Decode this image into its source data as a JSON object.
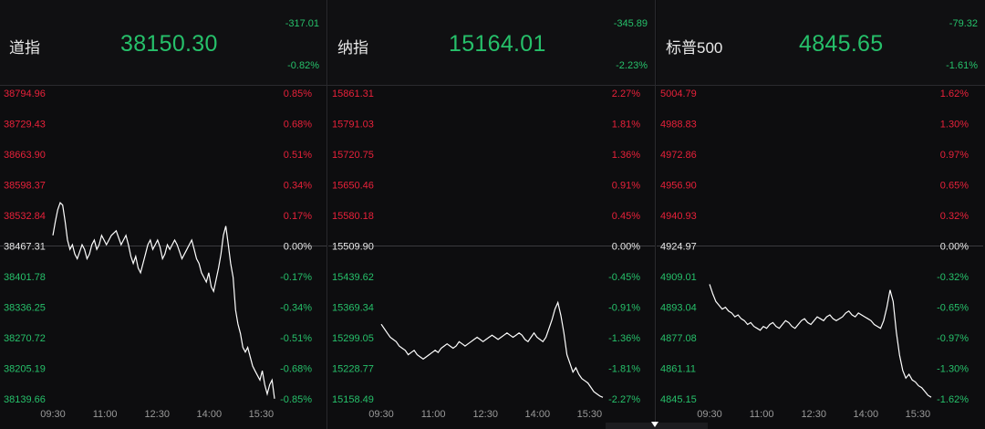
{
  "colors": {
    "background": "#0d0d0f",
    "up": "#e8213a",
    "down": "#26c06a",
    "neutral": "#e8e8e8",
    "line": "#ffffff",
    "grid": "#2a2a2e"
  },
  "chart_data": [
    {
      "type": "line",
      "name": "道指",
      "price": "38150.30",
      "change": "-317.01",
      "change_pct": "-0.82%",
      "ylim": [
        38139.66,
        38794.96
      ],
      "y_ticks": [
        "38794.96",
        "38729.43",
        "38663.90",
        "38598.37",
        "38532.84",
        "38467.31",
        "38401.78",
        "38336.25",
        "38270.72",
        "38205.19",
        "38139.66"
      ],
      "pct_ticks": [
        "0.85%",
        "0.68%",
        "0.51%",
        "0.34%",
        "0.17%",
        "0.00%",
        "-0.17%",
        "-0.34%",
        "-0.51%",
        "-0.68%",
        "-0.85%"
      ],
      "x_ticks": [
        "09:30",
        "11:00",
        "12:30",
        "14:00",
        "15:30"
      ],
      "grid": false,
      "series": [
        {
          "values": [
            38490,
            38520,
            38545,
            38560,
            38555,
            38520,
            38480,
            38460,
            38470,
            38450,
            38440,
            38455,
            38470,
            38460,
            38440,
            38450,
            38470,
            38480,
            38460,
            38470,
            38490,
            38480,
            38470,
            38480,
            38490,
            38495,
            38500,
            38485,
            38470,
            38480,
            38490,
            38470,
            38445,
            38430,
            38445,
            38420,
            38410,
            38430,
            38450,
            38470,
            38480,
            38460,
            38470,
            38480,
            38465,
            38440,
            38450,
            38470,
            38460,
            38470,
            38480,
            38470,
            38455,
            38440,
            38450,
            38460,
            38470,
            38480,
            38460,
            38440,
            38430,
            38410,
            38400,
            38390,
            38410,
            38380,
            38370,
            38395,
            38420,
            38450,
            38490,
            38510,
            38470,
            38430,
            38400,
            38330,
            38300,
            38280,
            38250,
            38240,
            38250,
            38230,
            38210,
            38200,
            38190,
            38180,
            38200,
            38170,
            38150,
            38170,
            38180,
            38140
          ]
        }
      ]
    },
    {
      "type": "line",
      "name": "纳指",
      "price": "15164.01",
      "change": "-345.89",
      "change_pct": "-2.23%",
      "ylim": [
        15158.49,
        15861.31
      ],
      "y_ticks": [
        "15861.31",
        "15791.03",
        "15720.75",
        "15650.46",
        "15580.18",
        "15509.90",
        "15439.62",
        "15369.34",
        "15299.05",
        "15228.77",
        "15158.49"
      ],
      "pct_ticks": [
        "2.27%",
        "1.81%",
        "1.36%",
        "0.91%",
        "0.45%",
        "0.00%",
        "-0.45%",
        "-0.91%",
        "-1.36%",
        "-1.81%",
        "-2.27%"
      ],
      "x_ticks": [
        "09:30",
        "11:00",
        "12:30",
        "14:00",
        "15:30"
      ],
      "grid": false,
      "series": [
        {
          "values": [
            15330,
            15320,
            15310,
            15300,
            15295,
            15290,
            15280,
            15275,
            15270,
            15260,
            15265,
            15270,
            15260,
            15255,
            15250,
            15255,
            15260,
            15265,
            15270,
            15265,
            15275,
            15280,
            15285,
            15280,
            15275,
            15280,
            15290,
            15285,
            15280,
            15285,
            15290,
            15295,
            15300,
            15295,
            15290,
            15295,
            15300,
            15305,
            15300,
            15295,
            15300,
            15305,
            15310,
            15305,
            15300,
            15305,
            15310,
            15305,
            15295,
            15290,
            15300,
            15310,
            15300,
            15295,
            15290,
            15300,
            15320,
            15340,
            15365,
            15380,
            15350,
            15310,
            15260,
            15240,
            15220,
            15230,
            15215,
            15205,
            15200,
            15195,
            15185,
            15175,
            15170,
            15165,
            15162
          ]
        }
      ]
    },
    {
      "type": "line",
      "name": "标普500",
      "price": "4845.65",
      "change": "-79.32",
      "change_pct": "-1.61%",
      "ylim": [
        4845.15,
        5004.79
      ],
      "y_ticks": [
        "5004.79",
        "4988.83",
        "4972.86",
        "4956.90",
        "4940.93",
        "4924.97",
        "4909.01",
        "4893.04",
        "4877.08",
        "4861.11",
        "4845.15"
      ],
      "pct_ticks": [
        "1.62%",
        "1.30%",
        "0.97%",
        "0.65%",
        "0.32%",
        "0.00%",
        "-0.32%",
        "-0.65%",
        "-0.97%",
        "-1.30%",
        "-1.62%"
      ],
      "x_ticks": [
        "09:30",
        "11:00",
        "12:30",
        "14:00",
        "15:30"
      ],
      "grid": false,
      "series": [
        {
          "values": [
            4905,
            4900,
            4896,
            4894,
            4892,
            4893,
            4891,
            4890,
            4888,
            4889,
            4887,
            4886,
            4884,
            4885,
            4883,
            4882,
            4881,
            4883,
            4882,
            4884,
            4885,
            4883,
            4882,
            4884,
            4886,
            4885,
            4883,
            4882,
            4884,
            4886,
            4887,
            4885,
            4884,
            4886,
            4888,
            4887,
            4886,
            4888,
            4889,
            4887,
            4886,
            4887,
            4888,
            4890,
            4891,
            4889,
            4888,
            4890,
            4889,
            4888,
            4887,
            4886,
            4884,
            4883,
            4882,
            4886,
            4893,
            4902,
            4896,
            4880,
            4868,
            4860,
            4856,
            4858,
            4855,
            4854,
            4852,
            4851,
            4849,
            4847,
            4846
          ]
        }
      ]
    }
  ]
}
